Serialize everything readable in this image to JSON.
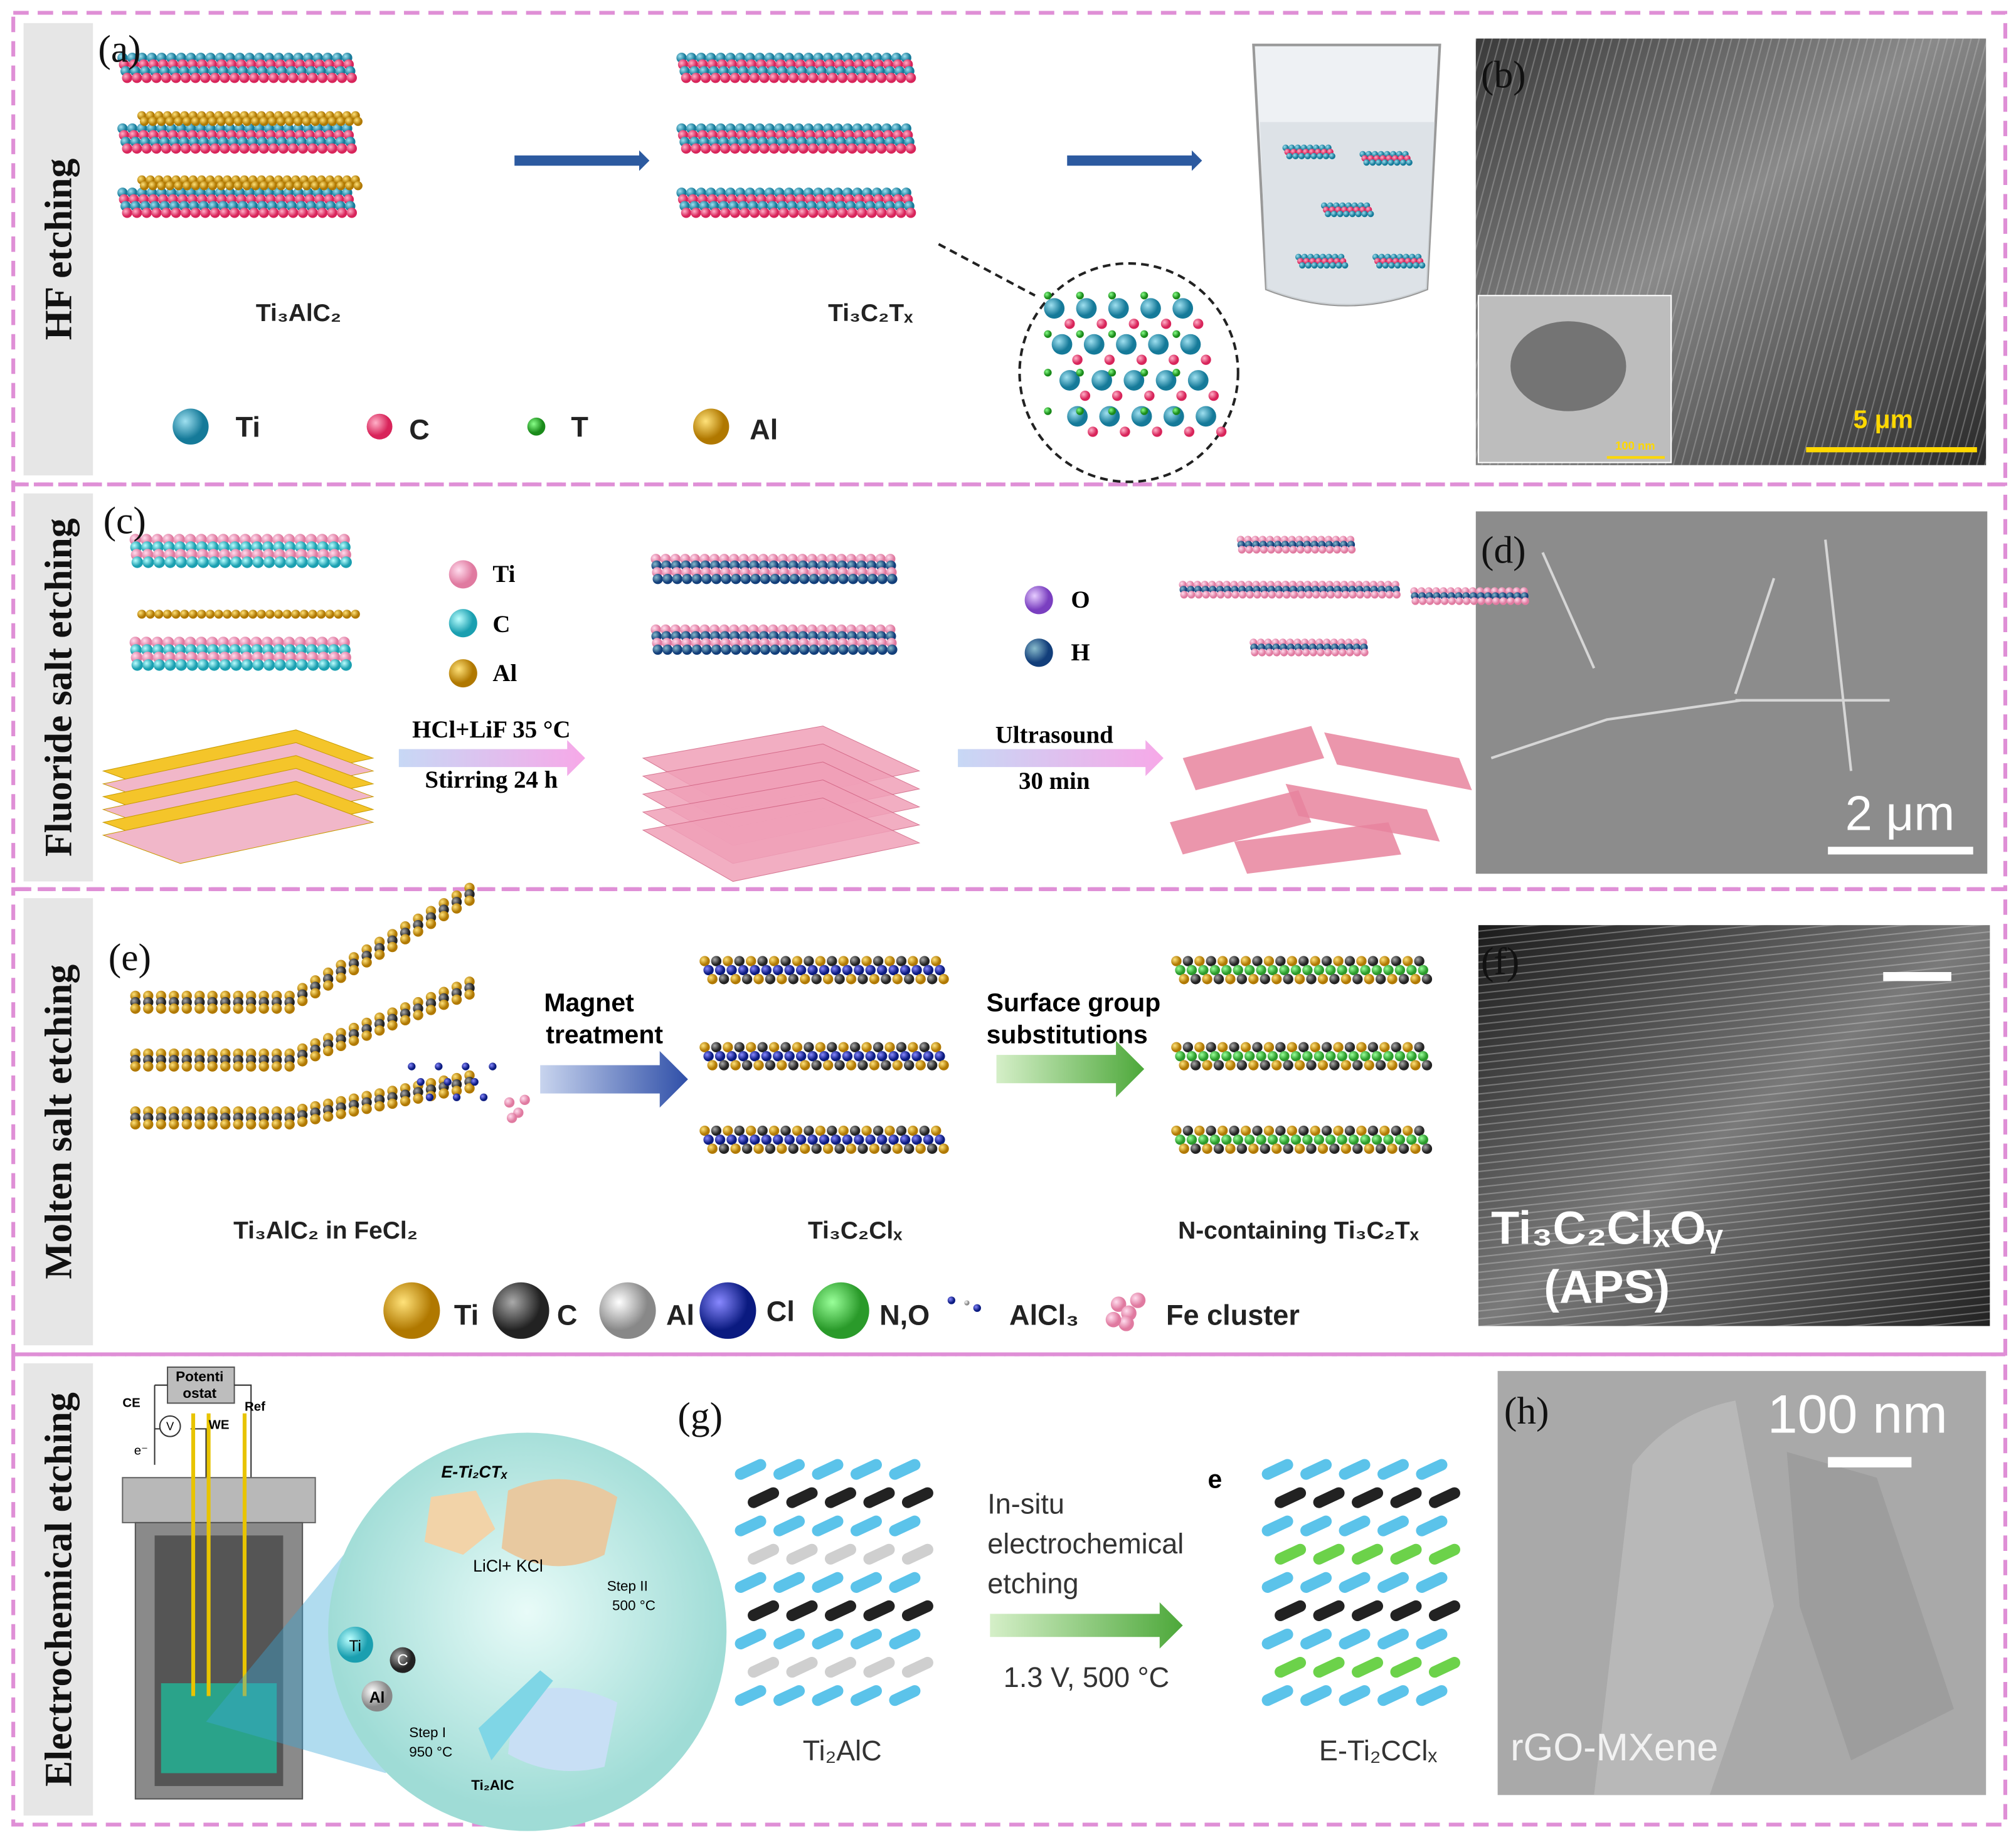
{
  "row_labels": [
    "HF etching",
    "Fluoride salt etching",
    "Molten salt etching",
    "Electrochemical etching"
  ],
  "panels": {
    "a": {
      "tag": "(a)",
      "labels": [
        "Ti₃AlC₂",
        "Ti₃C₂Tₓ"
      ],
      "legend": [
        "Ti",
        "C",
        "T",
        "Al"
      ]
    },
    "b": {
      "tag": "(b)",
      "scale_bar": "5 μm",
      "inset_scale": "100 nm"
    },
    "c": {
      "tag": "(c)",
      "legend": [
        "Ti",
        "C",
        "Al",
        "O",
        "H"
      ],
      "step1": [
        "HCl+LiF 35 °C",
        "Stirring 24 h"
      ],
      "step2": [
        "Ultrasound",
        "30 min"
      ]
    },
    "d": {
      "tag": "(d)",
      "scale_bar": "2 μm"
    },
    "e": {
      "tag": "(e)",
      "arrow1": [
        "Magnet",
        "treatment"
      ],
      "arrow2": [
        "Surface group",
        "substitutions"
      ],
      "labels": [
        "Ti₃AlC₂ in FeCl₂",
        "Ti₃C₂Clₓ",
        "N-containing Ti₃C₂Tₓ"
      ],
      "legend": [
        "Ti",
        "C",
        "Al",
        "Cl",
        "N,O",
        "AlCl₃",
        "Fe cluster"
      ]
    },
    "f": {
      "tag": "(f)",
      "label": [
        "Ti₃C₂ClₓOᵧ",
        "(APS)"
      ]
    },
    "g": {
      "tag": "(g)",
      "potentiostat": [
        "Potenti",
        "ostat"
      ],
      "cell_labels": [
        "CE",
        "WE",
        "Ref",
        "V",
        "e⁻"
      ],
      "bubble": [
        "E-Ti₂CTₓ",
        "LiCl+ KCl",
        "Step II",
        "500 °C",
        "Step I",
        "950 °C",
        "Ti",
        "C",
        "Al",
        "Ti₂AlC"
      ],
      "arrow": [
        "In-situ",
        "electrochemical",
        "etching"
      ],
      "condition": "1.3 V, 500 °C",
      "labels": [
        "Ti₂AlC",
        "E-Ti₂CClₓ"
      ],
      "mark": "e"
    },
    "h": {
      "tag": "(h)",
      "scale_bar": "100 nm",
      "label": "rGO-MXene"
    }
  }
}
